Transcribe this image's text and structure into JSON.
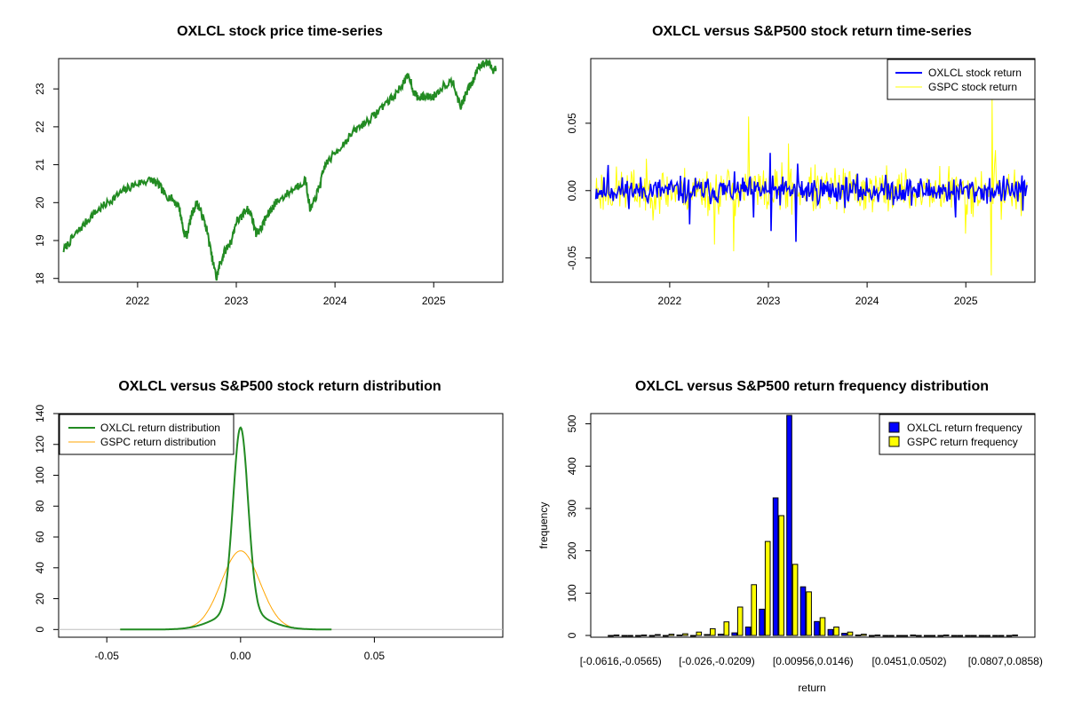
{
  "chart_data": [
    {
      "id": "price",
      "type": "line",
      "title": "OXLCL stock price time-series",
      "xlabel": "",
      "ylabel": "",
      "xlim": [
        2021.2,
        2025.7
      ],
      "ylim": [
        17.9,
        23.8
      ],
      "xticks": [
        2022,
        2023,
        2024,
        2025
      ],
      "xtick_labels": [
        "2022",
        "2023",
        "2024",
        "2025"
      ],
      "yticks": [
        18,
        19,
        20,
        21,
        22,
        23
      ],
      "ytick_labels": [
        "18",
        "19",
        "20",
        "21",
        "22",
        "23"
      ],
      "color": "#228b22",
      "series": [
        {
          "name": "OXLCL",
          "x": [
            2021.25,
            2021.35,
            2021.45,
            2021.55,
            2021.65,
            2021.75,
            2021.85,
            2021.95,
            2022.05,
            2022.15,
            2022.22,
            2022.28,
            2022.35,
            2022.42,
            2022.47,
            2022.5,
            2022.55,
            2022.6,
            2022.65,
            2022.7,
            2022.75,
            2022.8,
            2022.83,
            2022.88,
            2022.95,
            2023.0,
            2023.05,
            2023.1,
            2023.15,
            2023.2,
            2023.25,
            2023.3,
            2023.35,
            2023.4,
            2023.5,
            2023.6,
            2023.7,
            2023.75,
            2023.8,
            2023.85,
            2023.9,
            2024.0,
            2024.1,
            2024.2,
            2024.3,
            2024.4,
            2024.5,
            2024.6,
            2024.7,
            2024.75,
            2024.8,
            2024.85,
            2024.9,
            2025.0,
            2025.1,
            2025.2,
            2025.27,
            2025.3,
            2025.35,
            2025.4,
            2025.45,
            2025.5,
            2025.55,
            2025.6,
            2025.63
          ],
          "y": [
            18.75,
            19.1,
            19.4,
            19.7,
            19.9,
            20.1,
            20.3,
            20.45,
            20.55,
            20.6,
            20.45,
            20.2,
            20.1,
            19.9,
            19.2,
            19.15,
            19.7,
            20.0,
            19.7,
            19.3,
            18.6,
            18.0,
            18.35,
            18.7,
            19.0,
            19.5,
            19.6,
            19.85,
            19.7,
            19.2,
            19.3,
            19.6,
            19.8,
            20.0,
            20.2,
            20.4,
            20.6,
            19.8,
            20.1,
            20.5,
            21.0,
            21.3,
            21.6,
            21.9,
            22.1,
            22.3,
            22.6,
            22.8,
            23.2,
            23.35,
            22.9,
            22.75,
            22.8,
            22.8,
            23.1,
            23.2,
            22.5,
            22.7,
            23.0,
            23.2,
            23.6,
            23.65,
            23.7,
            23.5,
            23.55
          ]
        }
      ]
    },
    {
      "id": "returns",
      "type": "line",
      "title": "OXLCL versus S&P500 stock return time-series",
      "xlabel": "",
      "ylabel": "",
      "xlim": [
        2021.2,
        2025.7
      ],
      "ylim": [
        -0.068,
        0.098
      ],
      "xticks": [
        2022,
        2023,
        2024,
        2025
      ],
      "xtick_labels": [
        "2022",
        "2023",
        "2024",
        "2025"
      ],
      "yticks": [
        -0.05,
        0.0,
        0.05
      ],
      "ytick_labels": [
        "-0.05",
        "0.00",
        "0.05"
      ],
      "x_start": 2021.25,
      "x_end": 2025.62,
      "series": [
        {
          "name": "OXLCL stock return",
          "color": "#0000ff",
          "amplitude": 0.01,
          "spikes": [
            [
              2021.38,
              0.019
            ],
            [
              2022.2,
              -0.025
            ],
            [
              2022.85,
              -0.02
            ],
            [
              2023.02,
              0.028
            ],
            [
              2023.03,
              -0.03
            ],
            [
              2023.28,
              -0.038
            ],
            [
              2023.3,
              0.02
            ],
            [
              2024.9,
              -0.02
            ],
            [
              2025.58,
              -0.015
            ]
          ]
        },
        {
          "name": "GSPC stock return",
          "color": "#ffff00",
          "amplitude": 0.017,
          "spikes": [
            [
              2022.45,
              -0.04
            ],
            [
              2022.8,
              0.055
            ],
            [
              2022.65,
              -0.045
            ],
            [
              2023.2,
              0.035
            ],
            [
              2025.0,
              -0.032
            ],
            [
              2025.26,
              -0.063
            ],
            [
              2025.27,
              0.068
            ],
            [
              2025.3,
              0.03
            ]
          ]
        }
      ],
      "legend": [
        "OXLCL stock return",
        "GSPC stock return"
      ]
    },
    {
      "id": "density",
      "type": "line",
      "title": "OXLCL versus S&P500 stock return distribution",
      "xlabel": "",
      "ylabel": "",
      "xlim": [
        -0.068,
        0.098
      ],
      "ylim": [
        -5,
        140
      ],
      "xticks": [
        -0.05,
        0.0,
        0.05
      ],
      "xtick_labels": [
        "-0.05",
        "0.00",
        "0.05"
      ],
      "yticks": [
        0,
        20,
        40,
        60,
        80,
        100,
        120,
        140
      ],
      "ytick_labels": [
        "0",
        "20",
        "40",
        "60",
        "80",
        "100",
        "120",
        "140"
      ],
      "series": [
        {
          "name": "OXLCL return distribution",
          "color": "#228b22",
          "peak": 131,
          "sigma": 0.0028,
          "tail": 12,
          "tail_sigma": 0.009
        },
        {
          "name": "GSPC return distribution",
          "color": "#ffa500",
          "peak": 51,
          "sigma": 0.0072,
          "tail": 0,
          "tail_sigma": 0.01
        }
      ],
      "legend": [
        "OXLCL return distribution",
        "GSPC return distribution"
      ]
    },
    {
      "id": "histogram",
      "type": "bar",
      "title": "OXLCL versus S&P500 return frequency distribution",
      "xlabel": "return",
      "ylabel": "frequency",
      "ylim": [
        0,
        520
      ],
      "yticks": [
        0,
        100,
        200,
        300,
        400,
        500
      ],
      "ytick_labels": [
        "0",
        "100",
        "200",
        "300",
        "400",
        "500"
      ],
      "category_labels_shown": [
        "[-0.0616,-0.0565)",
        "[-0.026,-0.0209)",
        "[0.00956,0.0146)",
        "[0.0451,0.0502)",
        "[0.0807,0.0858)"
      ],
      "category_label_indices": [
        0,
        7,
        14,
        21,
        28
      ],
      "n_categories": 30,
      "series": [
        {
          "name": "OXLCL return frequency",
          "color": "#0000ff",
          "values": [
            0,
            0,
            0,
            0,
            0,
            1,
            0,
            2,
            3,
            6,
            20,
            62,
            325,
            520,
            115,
            33,
            14,
            5,
            1,
            0,
            0,
            0,
            1,
            0,
            0,
            0,
            0,
            0,
            0,
            0
          ]
        },
        {
          "name": "GSPC return frequency",
          "color": "#ffff00",
          "values": [
            1,
            0,
            1,
            2,
            3,
            4,
            8,
            16,
            32,
            67,
            120,
            222,
            283,
            168,
            103,
            42,
            20,
            8,
            3,
            1,
            0,
            0,
            0,
            0,
            1,
            0,
            0,
            0,
            0,
            1
          ]
        }
      ],
      "legend": [
        "OXLCL return frequency",
        "GSPC return frequency"
      ]
    }
  ]
}
